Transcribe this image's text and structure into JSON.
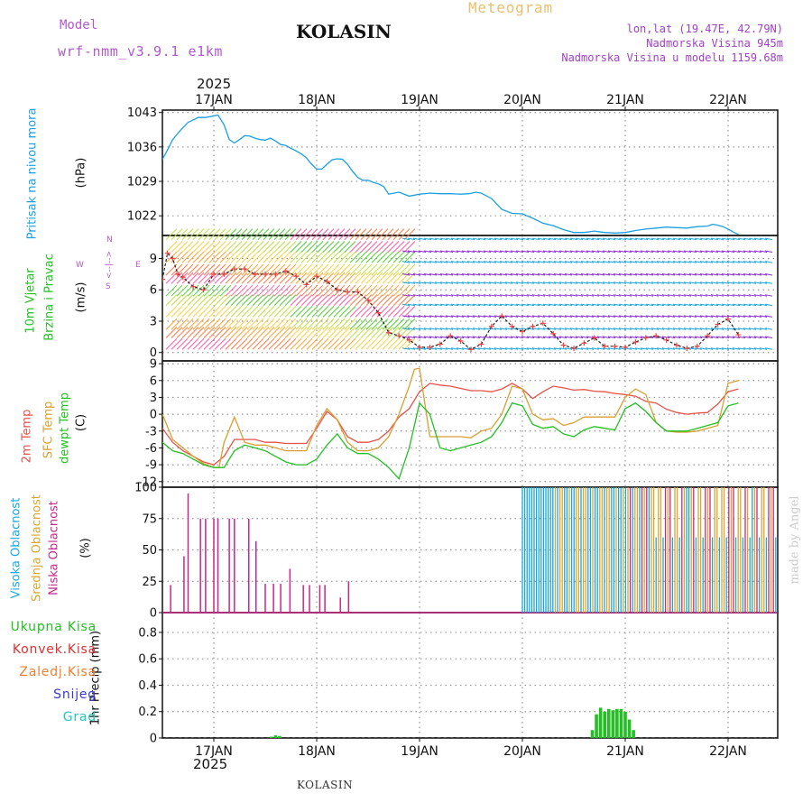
{
  "header": {
    "model_label": "Model",
    "model_name": "wrf-nmm_v3.9.1 e1km",
    "station": "KOLASIN",
    "meteogram": "Meteogram",
    "coords": "lon,lat (19.47E, 42.79N)",
    "altitude": "Nadmorska Visina 945m",
    "model_altitude": "Nadmorska Visina u modelu 1159.68m"
  },
  "footer": {
    "station": "KOLASIN",
    "credit": "made by Angel",
    "year_top": "2025",
    "year_bottom": "2025"
  },
  "colors": {
    "pressure": "#1aa0e0",
    "temp2m": "#e8524a",
    "sfc": "#d8a030",
    "dewpt": "#22c022",
    "high_cloud": "#18a8e0",
    "mid_cloud": "#d8a830",
    "low_cloud": "#c8288a",
    "precip_total": "#22c022",
    "precip_conv": "#e03030",
    "precip_frozen": "#f08030",
    "snow": "#3838d8",
    "hail": "#20c8c0",
    "model": "#b058d0",
    "meteogram": "#e8c070",
    "info": "#a040c8"
  },
  "chart_data": [
    {
      "type": "line",
      "panel": "pressure",
      "ylabel": [
        "Pritisak na nivou mora",
        "(hPa)"
      ],
      "yticks": [
        1022,
        1029,
        1036,
        1043
      ],
      "ylim": [
        1018,
        1043.5
      ],
      "dates": [
        "17JAN",
        "18JAN",
        "19JAN",
        "20JAN",
        "21JAN",
        "22JAN"
      ],
      "series": [
        {
          "x": [
            0.0,
            0.04,
            0.1,
            0.18,
            0.25,
            0.35,
            0.42,
            0.5,
            0.54,
            0.6,
            0.65,
            0.7,
            0.75,
            0.8,
            0.85,
            0.9,
            0.95,
            1.0,
            1.05,
            1.1,
            1.15,
            1.2,
            1.25,
            1.3,
            1.35,
            1.4,
            1.45,
            1.5,
            1.55,
            1.6,
            1.65,
            1.7,
            1.75,
            1.8,
            1.85,
            1.9,
            1.95,
            2.0,
            2.05,
            2.1,
            2.15,
            2.2,
            2.3,
            2.4,
            2.5,
            2.6,
            2.7,
            2.8,
            2.9,
            2.98,
            3.05,
            3.1,
            3.2,
            3.3,
            3.4,
            3.5,
            3.6,
            3.7,
            3.8,
            3.9,
            4.0,
            4.1,
            4.2,
            4.3,
            4.4,
            4.5,
            4.6,
            4.7,
            4.8,
            4.9,
            5.0,
            5.1,
            5.2,
            5.3,
            5.35,
            5.4,
            5.45,
            5.5,
            5.55,
            5.6
          ],
          "values": [
            1033.5,
            1035,
            1037.5,
            1039.5,
            1041,
            1042,
            1042,
            1042.3,
            1042.5,
            1040.5,
            1037.5,
            1036.8,
            1037.5,
            1038.3,
            1038.2,
            1037.8,
            1037.5,
            1037.4,
            1037.8,
            1037.2,
            1036.5,
            1036.3,
            1035.7,
            1035.2,
            1034.6,
            1033.8,
            1032.5,
            1031.5,
            1031.5,
            1032.5,
            1033.4,
            1033.6,
            1033.5,
            1032.5,
            1031,
            1029.8,
            1029.2,
            1029.2,
            1028.8,
            1028.5,
            1028,
            1026.4,
            1026.8,
            1026,
            1026.4,
            1026.6,
            1026.5,
            1026.5,
            1026.4,
            1026.5,
            1026.8,
            1026.6,
            1025.5,
            1023.3,
            1022.5,
            1022.4,
            1021.5,
            1020.5,
            1020,
            1019.2,
            1018.6,
            1018.6,
            1018.9,
            1018.6,
            1018.5,
            1018.6,
            1019,
            1019.3,
            1019.5,
            1019.7,
            1019.6,
            1019.5,
            1019.8,
            1019.9,
            1020.3,
            1020.1,
            1019.8,
            1019.3,
            1018.7,
            1018.2
          ]
        }
      ]
    },
    {
      "type": "line",
      "panel": "wind",
      "ylabel": [
        "10m Vjetar",
        "Brzina i Pravac",
        "(m/s)"
      ],
      "yticks": [
        0,
        3,
        6,
        9
      ],
      "ylim": [
        -0.8,
        11.2
      ],
      "compass": [
        "N",
        "W",
        "<--|-->",
        "E",
        "S"
      ],
      "series": [
        {
          "name": "speed",
          "x": [
            0.0,
            0.05,
            0.1,
            0.15,
            0.2,
            0.3,
            0.4,
            0.5,
            0.6,
            0.7,
            0.8,
            0.9,
            1.0,
            1.1,
            1.2,
            1.3,
            1.4,
            1.5,
            1.6,
            1.7,
            1.8,
            1.9,
            2.0,
            2.1,
            2.2,
            2.3,
            2.4,
            2.5,
            2.6,
            2.7,
            2.8,
            2.9,
            3.0,
            3.1,
            3.2,
            3.3,
            3.4,
            3.5,
            3.6,
            3.7,
            3.8,
            3.9,
            4.0,
            4.1,
            4.2,
            4.3,
            4.4,
            4.5,
            4.6,
            4.7,
            4.8,
            4.9,
            5.0,
            5.1,
            5.2,
            5.3,
            5.4,
            5.5,
            5.6
          ],
          "values": [
            7,
            9.5,
            9,
            7.5,
            7.2,
            6.3,
            6,
            7.5,
            7.5,
            8,
            8,
            7.5,
            7.5,
            7.5,
            7.8,
            7.3,
            6.5,
            7.3,
            6.8,
            6,
            5.8,
            5.8,
            5,
            3.8,
            1.9,
            1.6,
            1.2,
            0.5,
            0.5,
            0.8,
            1.6,
            1.1,
            0.3,
            0.8,
            2.5,
            3.5,
            2.5,
            2,
            2.5,
            2.8,
            1.8,
            0.7,
            0.4,
            0.9,
            1.4,
            0.6,
            0.6,
            0.5,
            1,
            1.4,
            1.6,
            1.2,
            0.7,
            0.4,
            0.6,
            1.6,
            2.7,
            3.2,
            1.7
          ]
        }
      ]
    },
    {
      "type": "line",
      "panel": "temperature",
      "ylabel": [
        "2m Temp",
        "SFC Temp",
        "dewpt Temp",
        "(C)"
      ],
      "yticks": [
        -12,
        -9,
        -6,
        -3,
        0,
        3,
        6,
        9
      ],
      "ylim": [
        -13,
        9.5
      ],
      "series": [
        {
          "name": "2m Temp",
          "x": [
            0.0,
            0.1,
            0.2,
            0.3,
            0.4,
            0.5,
            0.6,
            0.7,
            0.8,
            0.9,
            1.0,
            1.1,
            1.2,
            1.3,
            1.4,
            1.5,
            1.6,
            1.7,
            1.8,
            1.9,
            2.0,
            2.1,
            2.2,
            2.3,
            2.4,
            2.5,
            2.6,
            2.7,
            2.8,
            2.9,
            3.0,
            3.1,
            3.2,
            3.3,
            3.4,
            3.5,
            3.6,
            3.7,
            3.8,
            3.9,
            4.0,
            4.1,
            4.2,
            4.3,
            4.4,
            4.5,
            4.6,
            4.7,
            4.8,
            4.9,
            5.0,
            5.1,
            5.2,
            5.3,
            5.4,
            5.5,
            5.6
          ],
          "values": [
            -2.5,
            -5,
            -6.5,
            -7.5,
            -8.5,
            -9,
            -7.5,
            -4.5,
            -4.5,
            -4.5,
            -5,
            -5,
            -5.2,
            -5.2,
            -5.2,
            -2.5,
            0.5,
            -1,
            -4,
            -5,
            -5,
            -4.5,
            -3,
            -0.5,
            1,
            4,
            5.5,
            5.2,
            5,
            4.6,
            4.2,
            4.2,
            4,
            4.5,
            5.5,
            4.5,
            2.8,
            4,
            5,
            4.7,
            4.3,
            4.4,
            4.1,
            4,
            3.7,
            3.5,
            3.2,
            2.3,
            2,
            0.9,
            0.3,
            0,
            0.2,
            0.3,
            1.8,
            4,
            4.5
          ]
        },
        {
          "name": "SFC Temp",
          "x": [
            0.0,
            0.1,
            0.2,
            0.3,
            0.4,
            0.5,
            0.55,
            0.6,
            0.7,
            0.8,
            0.9,
            1.0,
            1.1,
            1.2,
            1.3,
            1.4,
            1.5,
            1.6,
            1.7,
            1.8,
            1.9,
            2.0,
            2.1,
            2.2,
            2.3,
            2.4,
            2.45,
            2.5,
            2.6,
            2.7,
            2.8,
            2.9,
            3.0,
            3.1,
            3.2,
            3.3,
            3.4,
            3.5,
            3.6,
            3.7,
            3.8,
            3.9,
            4.0,
            4.1,
            4.2,
            4.3,
            4.4,
            4.5,
            4.6,
            4.7,
            4.8,
            4.9,
            5.0,
            5.1,
            5.2,
            5.3,
            5.4,
            5.5,
            5.6
          ],
          "values": [
            0,
            -4.5,
            -6,
            -7.5,
            -8.8,
            -9.5,
            -9.5,
            -5,
            -0.5,
            -5,
            -5.5,
            -5.5,
            -6,
            -6.5,
            -6.5,
            -6.5,
            -2,
            1,
            -1,
            -5,
            -6.5,
            -6.5,
            -6,
            -4,
            0,
            5,
            8,
            8.2,
            -4,
            -4,
            -4,
            -4,
            -4.2,
            -3,
            -2.5,
            0,
            5,
            4.5,
            0,
            -1,
            -0.8,
            -2,
            -1.5,
            -0.5,
            -0.5,
            -0.5,
            -0.5,
            3,
            4.5,
            3.5,
            -1.5,
            -3,
            -3.2,
            -3.2,
            -3,
            -2.5,
            -2,
            5.5,
            6
          ]
        },
        {
          "name": "dewpt Temp",
          "x": [
            0.0,
            0.1,
            0.2,
            0.3,
            0.4,
            0.5,
            0.6,
            0.7,
            0.8,
            0.9,
            1.0,
            1.1,
            1.2,
            1.3,
            1.4,
            1.5,
            1.6,
            1.7,
            1.8,
            1.9,
            2.0,
            2.1,
            2.2,
            2.3,
            2.4,
            2.5,
            2.6,
            2.7,
            2.8,
            2.9,
            3.0,
            3.1,
            3.2,
            3.3,
            3.4,
            3.5,
            3.6,
            3.7,
            3.8,
            3.9,
            4.0,
            4.1,
            4.2,
            4.3,
            4.4,
            4.5,
            4.6,
            4.7,
            4.8,
            4.9,
            5.0,
            5.1,
            5.2,
            5.3,
            5.4,
            5.5,
            5.6
          ],
          "values": [
            -5,
            -6.5,
            -7,
            -8,
            -9,
            -9.5,
            -9.5,
            -6.5,
            -5.5,
            -6,
            -6.5,
            -7.5,
            -8.5,
            -9,
            -9,
            -8,
            -5.5,
            -3.5,
            -6,
            -7,
            -7,
            -8,
            -9.5,
            -11.5,
            -6,
            2,
            0,
            -6,
            -6.5,
            -6,
            -5.5,
            -5,
            -4,
            -1.5,
            2,
            1.5,
            -1.8,
            -2.5,
            -2.2,
            -3.5,
            -4,
            -2.8,
            -2.2,
            -2.5,
            -2.8,
            1,
            2,
            0.5,
            -1.5,
            -3,
            -3,
            -3,
            -2.5,
            -2,
            -1.5,
            1.5,
            2
          ]
        }
      ]
    },
    {
      "type": "bar",
      "panel": "cloud",
      "ylabel": [
        "Visoka Oblacnost",
        "Srednja Oblacnost",
        "Niska Oblacnost",
        "(%)"
      ],
      "yticks": [
        0,
        25,
        50,
        75,
        100
      ],
      "ylim": [
        0,
        100
      ],
      "series": [
        {
          "name": "Niska Oblacnost",
          "x": [
            0.08,
            0.21,
            0.25,
            0.37,
            0.42,
            0.5,
            0.54,
            0.65,
            0.7,
            0.84,
            0.91,
            1.0,
            1.08,
            1.15,
            1.24,
            1.37,
            1.43,
            1.53,
            1.58,
            1.73,
            1.81,
            2.35,
            2.41
          ],
          "values": [
            22,
            45,
            95,
            75,
            75,
            75,
            75,
            75,
            75,
            75,
            57,
            23,
            23,
            23,
            35,
            22,
            22,
            22,
            22,
            12,
            25,
            0,
            0
          ]
        }
      ]
    },
    {
      "type": "bar",
      "panel": "precip",
      "ylabel": [
        "1hr Precip (mm)"
      ],
      "legend": [
        "Ukupna Kisa",
        "Konvek.Kisa",
        "Zaledj.Kisa",
        "Snijeg",
        "Grad"
      ],
      "yticks": [
        0,
        0.2,
        0.4,
        0.6,
        0.8
      ],
      "ylim": [
        0,
        0.95
      ],
      "series": [
        {
          "name": "Ukupna Kisa",
          "x": [
            1.06,
            1.1,
            1.14,
            4.18,
            4.22,
            4.26,
            4.3,
            4.34,
            4.38,
            4.42,
            4.46,
            4.5,
            4.54,
            4.58
          ],
          "values": [
            0.01,
            0.02,
            0.015,
            0.06,
            0.18,
            0.23,
            0.2,
            0.22,
            0.21,
            0.22,
            0.22,
            0.2,
            0.14,
            0.06
          ]
        }
      ]
    }
  ]
}
